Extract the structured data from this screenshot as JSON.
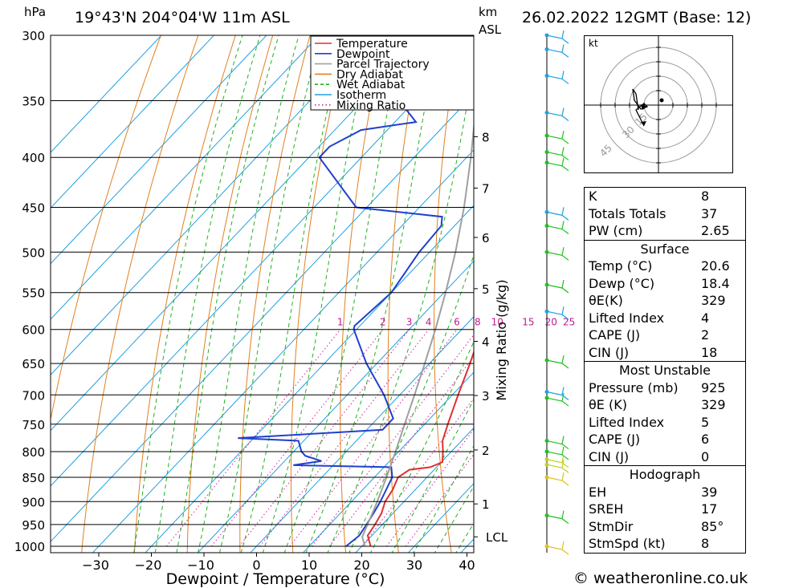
{
  "header": {
    "hpa_unit": "hPa",
    "location": "19°43'N  204°04'W  11m  ASL",
    "km_unit": "km",
    "asl": "ASL",
    "datetime": "26.02.2022  12GMT  (Base: 12)"
  },
  "chart_data": {
    "type": "line",
    "chart_kind": "skew-T log-P",
    "xlabel": "Dewpoint / Temperature (°C)",
    "ylabel_left": "hPa",
    "ylabel_right_secondary": "Mixing Ratio (g/kg)",
    "x_ticks": [
      -30,
      -20,
      -10,
      0,
      10,
      20,
      30,
      40
    ],
    "pressure_levels": [
      300,
      350,
      400,
      450,
      500,
      550,
      600,
      650,
      700,
      750,
      800,
      850,
      900,
      950,
      1000
    ],
    "height_km_ticks": [
      {
        "label": "8",
        "p": 381
      },
      {
        "label": "7",
        "p": 430
      },
      {
        "label": "6",
        "p": 483
      },
      {
        "label": "5",
        "p": 545
      },
      {
        "label": "4",
        "p": 617
      },
      {
        "label": "3",
        "p": 701
      },
      {
        "label": "2",
        "p": 797
      },
      {
        "label": "1",
        "p": 905
      },
      {
        "label": "LCL",
        "p": 978
      }
    ],
    "mixing_ratio_labels": [
      "1",
      "2",
      "3",
      "4",
      "6",
      "8",
      "10",
      "15",
      "20",
      "25"
    ],
    "legend": {
      "position": "top-inside",
      "entries": [
        {
          "label": "Temperature",
          "color": "#e03030",
          "style": "solid"
        },
        {
          "label": "Dewpoint",
          "color": "#2040d0",
          "style": "solid"
        },
        {
          "label": "Parcel Trajectory",
          "color": "#a0a0a0",
          "style": "solid"
        },
        {
          "label": "Dry Adiabat",
          "color": "#e08020",
          "style": "solid"
        },
        {
          "label": "Wet Adiabat",
          "color": "#20b020",
          "style": "dashed"
        },
        {
          "label": "Isotherm",
          "color": "#20a0e0",
          "style": "solid"
        },
        {
          "label": "Mixing Ratio",
          "color": "#d020a0",
          "style": "dotted"
        }
      ]
    },
    "series": [
      {
        "name": "Temperature",
        "color": "#e03030",
        "points": [
          [
            1000,
            21.7
          ],
          [
            975,
            19.2
          ],
          [
            950,
            18.6
          ],
          [
            925,
            17.8
          ],
          [
            900,
            16.4
          ],
          [
            875,
            15.7
          ],
          [
            850,
            14.5
          ],
          [
            835,
            15.3
          ],
          [
            830,
            18.8
          ],
          [
            820,
            20.2
          ],
          [
            800,
            18.4
          ],
          [
            780,
            16.4
          ],
          [
            750,
            14.4
          ],
          [
            700,
            11.1
          ],
          [
            650,
            7.7
          ],
          [
            600,
            3.8
          ],
          [
            590,
            2.9
          ],
          [
            575,
            3.0
          ],
          [
            550,
            -0.3
          ],
          [
            500,
            -7.4
          ],
          [
            450,
            -15.2
          ],
          [
            440,
            -16.4
          ],
          [
            400,
            -23.5
          ],
          [
            375,
            -28.4
          ],
          [
            365,
            -30.0
          ],
          [
            335,
            -33.5
          ],
          [
            300,
            -41.0
          ]
        ]
      },
      {
        "name": "Dewpoint",
        "color": "#2040d0",
        "points": [
          [
            1000,
            17.0
          ],
          [
            975,
            17.6
          ],
          [
            950,
            17.0
          ],
          [
            925,
            16.3
          ],
          [
            900,
            15.5
          ],
          [
            850,
            13.4
          ],
          [
            830,
            11.4
          ],
          [
            826,
            -7.6
          ],
          [
            818,
            -3.0
          ],
          [
            808,
            -7.0
          ],
          [
            800,
            -8.5
          ],
          [
            780,
            -11.0
          ],
          [
            775,
            -23.0
          ],
          [
            760,
            3.0
          ],
          [
            740,
            3.0
          ],
          [
            700,
            -3.0
          ],
          [
            650,
            -12.0
          ],
          [
            600,
            -20.5
          ],
          [
            595,
            -21.0
          ],
          [
            550,
            -20.0
          ],
          [
            500,
            -22.0
          ],
          [
            470,
            -22.5
          ],
          [
            460,
            -24.0
          ],
          [
            450,
            -42.0
          ],
          [
            400,
            -58.0
          ],
          [
            390,
            -58.0
          ],
          [
            375,
            -55.0
          ],
          [
            368,
            -46.0
          ],
          [
            350,
            -53.0
          ],
          [
            300,
            -52.0
          ]
        ]
      },
      {
        "name": "Parcel Trajectory",
        "color": "#a0a0a0",
        "points": [
          [
            1000,
            20.6
          ],
          [
            978,
            18.4
          ],
          [
            950,
            17.2
          ],
          [
            900,
            14.9
          ],
          [
            850,
            12.3
          ],
          [
            800,
            9.4
          ],
          [
            750,
            6.2
          ],
          [
            700,
            2.8
          ],
          [
            650,
            -0.9
          ],
          [
            600,
            -5.0
          ],
          [
            550,
            -9.7
          ],
          [
            500,
            -15.1
          ],
          [
            450,
            -21.5
          ],
          [
            400,
            -29.2
          ],
          [
            350,
            -38.3
          ],
          [
            300,
            -49.0
          ]
        ]
      }
    ]
  },
  "hodograph": {
    "unit": "kt",
    "ring_labels": [
      "15",
      "30",
      "45"
    ]
  },
  "indices": {
    "k_label": "K",
    "k_val": "8",
    "tt_label": "Totals Totals",
    "tt_val": "37",
    "pw_label": "PW (cm)",
    "pw_val": "2.65",
    "surface_title": "Surface",
    "temp_label": "Temp (°C)",
    "temp_val": "20.6",
    "dewp_label": "Dewp (°C)",
    "dewp_val": "18.4",
    "theta_label": "θE(K)",
    "theta_val": "329",
    "li_label": "Lifted Index",
    "li_val": "4",
    "cape_label": "CAPE (J)",
    "cape_val": "2",
    "cin_label": "CIN (J)",
    "cin_val": "18",
    "mu_title": "Most Unstable",
    "mu_pressure_label": "Pressure (mb)",
    "mu_pressure_val": "925",
    "mu_theta_label": "θE (K)",
    "mu_theta_val": "329",
    "mu_li_label": "Lifted Index",
    "mu_li_val": "5",
    "mu_cape_label": "CAPE (J)",
    "mu_cape_val": "6",
    "mu_cin_label": "CIN (J)",
    "mu_cin_val": "0",
    "hodo_title": "Hodograph",
    "eh_label": "EH",
    "eh_val": "39",
    "sreh_label": "SREH",
    "sreh_val": "17",
    "stmdir_label": "StmDir",
    "stmdir_val": "85°",
    "stmspd_label": "StmSpd (kt)",
    "stmspd_val": "8"
  },
  "credit": "© weatheronline.co.uk"
}
